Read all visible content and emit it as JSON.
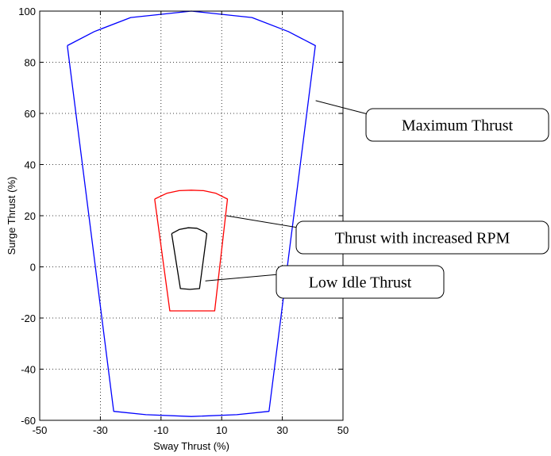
{
  "chart_data": {
    "type": "line",
    "title": "",
    "xlabel": "Sway Thrust (%)",
    "ylabel": "Surge Thrust (%)",
    "xlim": [
      -50,
      50
    ],
    "ylim": [
      -60,
      100
    ],
    "xticks": [
      -50,
      -30,
      -10,
      10,
      30,
      50
    ],
    "yticks": [
      -60,
      -40,
      -20,
      0,
      20,
      40,
      60,
      80,
      100
    ],
    "grid": true,
    "series": [
      {
        "color": "#0000ff",
        "points": [
          [
            -40.9,
            86.5
          ],
          [
            -32,
            92
          ],
          [
            -20,
            97.5
          ],
          [
            0,
            100
          ],
          [
            20,
            97.5
          ],
          [
            32,
            92
          ],
          [
            40.9,
            86.5
          ],
          [
            25.6,
            -56.5
          ],
          [
            15,
            -57.8
          ],
          [
            0,
            -58.5
          ],
          [
            -15,
            -57.8
          ],
          [
            -25.6,
            -56.5
          ],
          [
            -40.9,
            86.5
          ]
        ]
      },
      {
        "color": "#ff0000",
        "points": [
          [
            -12.1,
            26.5
          ],
          [
            -8,
            28.8
          ],
          [
            -4,
            29.8
          ],
          [
            0,
            30
          ],
          [
            4,
            29.8
          ],
          [
            8,
            28.8
          ],
          [
            11.9,
            26.5
          ],
          [
            7.7,
            -17.2
          ],
          [
            -7.1,
            -17.2
          ],
          [
            -12.1,
            26.5
          ]
        ]
      },
      {
        "color": "#000000",
        "points": [
          [
            -6.5,
            13
          ],
          [
            -4,
            14.6
          ],
          [
            -1,
            15.3
          ],
          [
            1.8,
            15.1
          ],
          [
            4.2,
            13.8
          ],
          [
            5.1,
            13
          ],
          [
            2.7,
            -8.5
          ],
          [
            -0.5,
            -8.8
          ],
          [
            -3.6,
            -8.5
          ],
          [
            -6.5,
            13
          ]
        ]
      }
    ],
    "annotations": [
      {
        "text": "Maximum Thrust",
        "target": [
          41,
          65
        ]
      },
      {
        "text": "Thrust with increased RPM",
        "target": [
          11.5,
          20
        ]
      },
      {
        "text": "Low Idle Thrust",
        "target": [
          4.6,
          -5.5
        ]
      }
    ]
  }
}
